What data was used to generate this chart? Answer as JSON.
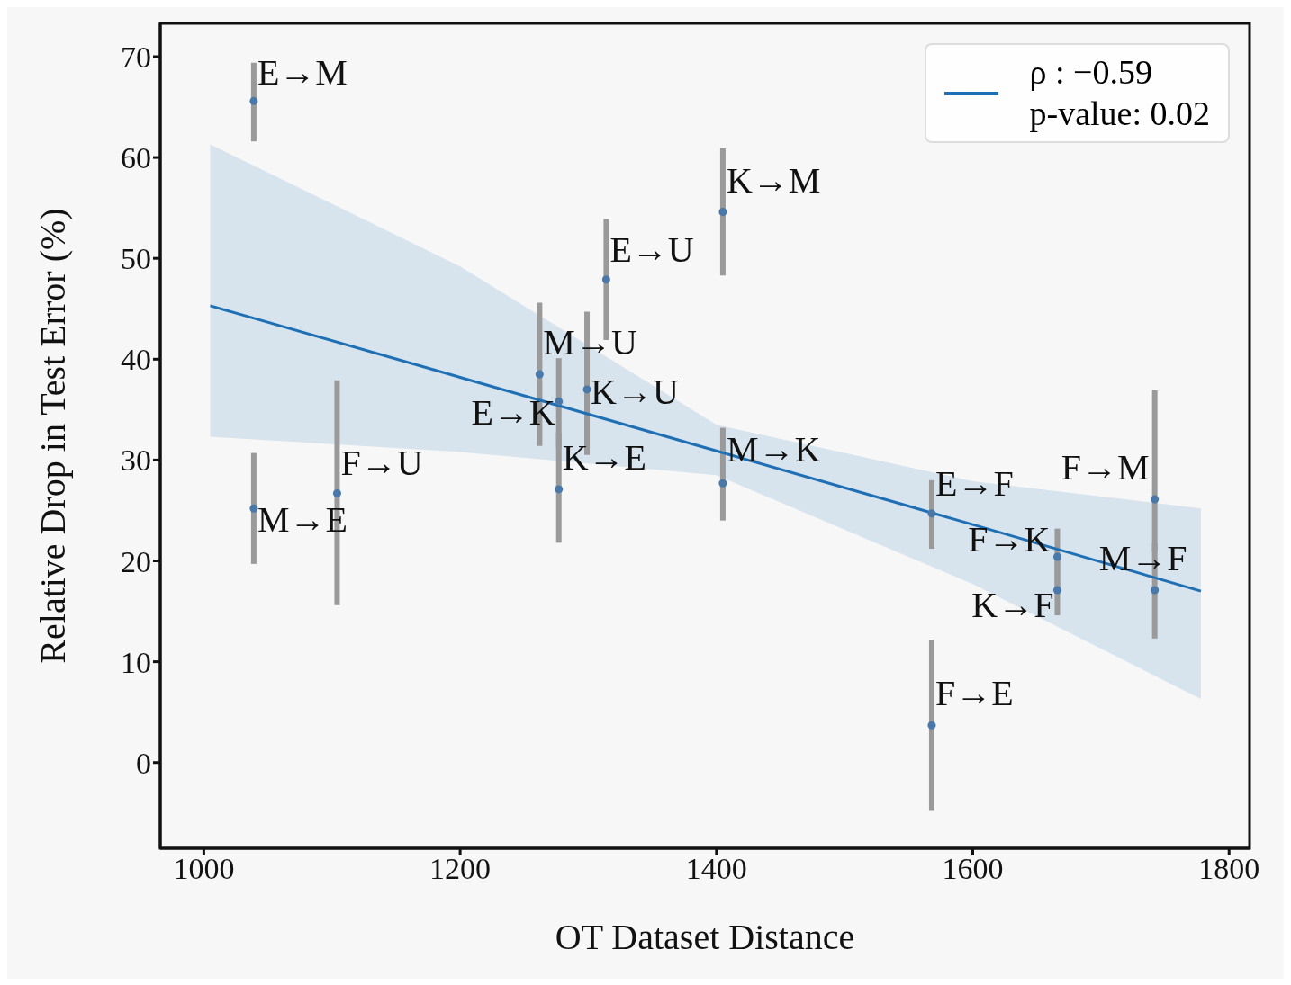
{
  "chart_data": {
    "type": "scatter",
    "xlabel": "OT Dataset Distance",
    "ylabel": "Relative Drop in Test Error (%)",
    "xlim": [
      966,
      1816
    ],
    "ylim": [
      -8.5,
      73.3
    ],
    "xticks": [
      1000,
      1200,
      1400,
      1600,
      1800
    ],
    "yticks": [
      0,
      10,
      20,
      30,
      40,
      50,
      60,
      70
    ],
    "grid": false,
    "legend": "top right",
    "marker": "circle",
    "series": [
      {
        "color": "#4a78a8",
        "x": [
          1039,
          1039,
          1104,
          1262,
          1277,
          1277,
          1299,
          1314,
          1405,
          1405,
          1568,
          1568,
          1666,
          1666,
          1742,
          1742
        ],
        "values": [
          65.6,
          25.2,
          26.7,
          38.5,
          35.8,
          27.1,
          37.0,
          47.9,
          54.6,
          27.7,
          24.7,
          3.7,
          20.4,
          17.1,
          26.1,
          17.1
        ],
        "errors": [
          [
            61.6,
            69.4
          ],
          [
            19.7,
            30.7
          ],
          [
            15.6,
            37.9
          ],
          [
            31.4,
            45.6
          ],
          [
            31.2,
            40.1
          ],
          [
            21.8,
            32.7
          ],
          [
            30.5,
            44.7
          ],
          [
            41.9,
            53.9
          ],
          [
            48.3,
            60.9
          ],
          [
            24.0,
            33.2
          ],
          [
            21.2,
            28.0
          ],
          [
            -4.8,
            12.2
          ],
          [
            17.2,
            23.2
          ],
          [
            14.6,
            20.1
          ],
          [
            20.9,
            36.9
          ],
          [
            12.3,
            21.7
          ]
        ]
      },
      {
        "type": "line",
        "name": "ρ : −0.59\np-value: 0.02",
        "color": "#1f6fb4",
        "line_style": "solid",
        "marker": "none",
        "x": [
          1005,
          1200,
          1400,
          1600,
          1778
        ],
        "values": [
          45.3,
          38.2,
          30.9,
          23.6,
          17.0
        ],
        "lower": [
          32.3,
          30.8,
          28.5,
          17.7,
          6.3
        ],
        "upper": [
          61.3,
          49.2,
          33.5,
          27.9,
          25.2
        ]
      }
    ],
    "annotations": [
      {
        "text": "E→M",
        "x": 1039,
        "y": 65.6
      },
      {
        "text": "M→E",
        "x": 1039,
        "y": 25.2
      },
      {
        "text": "F→U",
        "x": 1104,
        "y": 26.7
      },
      {
        "text": "M→U",
        "x": 1262,
        "y": 38.5
      },
      {
        "text": "E→K",
        "x": 1277,
        "y": 35.8
      },
      {
        "text": "K→E",
        "x": 1277,
        "y": 27.1
      },
      {
        "text": "K→U",
        "x": 1299,
        "y": 37.0
      },
      {
        "text": "E→U",
        "x": 1314,
        "y": 47.9
      },
      {
        "text": "K→M",
        "x": 1405,
        "y": 54.6
      },
      {
        "text": "M→K",
        "x": 1405,
        "y": 27.7
      },
      {
        "text": "E→F",
        "x": 1568,
        "y": 24.7
      },
      {
        "text": "F→E",
        "x": 1568,
        "y": 3.7
      },
      {
        "text": "F→K",
        "x": 1666,
        "y": 20.4
      },
      {
        "text": "K→F",
        "x": 1666,
        "y": 17.1
      },
      {
        "text": "F→M",
        "x": 1742,
        "y": 26.1
      },
      {
        "text": "M→F",
        "x": 1742,
        "y": 17.1
      }
    ]
  }
}
